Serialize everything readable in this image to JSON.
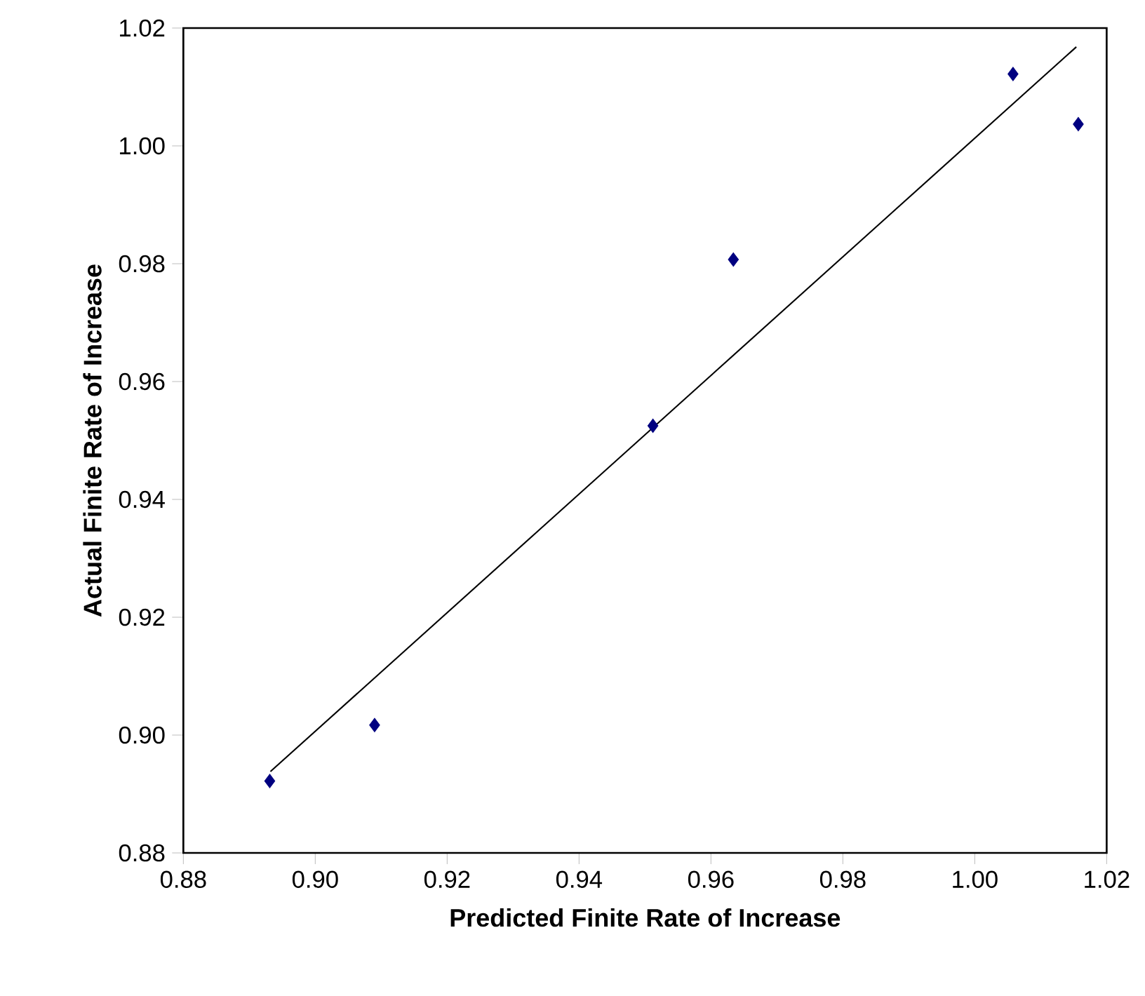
{
  "chart_data": {
    "type": "scatter",
    "xlabel": "Predicted Finite Rate of Increase",
    "ylabel": "Actual Finite Rate of Increase",
    "xlim": [
      0.88,
      1.02
    ],
    "ylim": [
      0.88,
      1.02
    ],
    "xticks": [
      {
        "value": 0.88,
        "label": "0.88"
      },
      {
        "value": 0.9,
        "label": "0.90"
      },
      {
        "value": 0.92,
        "label": "0.92"
      },
      {
        "value": 0.94,
        "label": "0.94"
      },
      {
        "value": 0.96,
        "label": "0.96"
      },
      {
        "value": 0.98,
        "label": "0.98"
      },
      {
        "value": 1.0,
        "label": "1.00"
      },
      {
        "value": 1.02,
        "label": "1.02"
      }
    ],
    "yticks": [
      {
        "value": 0.88,
        "label": "0.88"
      },
      {
        "value": 0.9,
        "label": "0.90"
      },
      {
        "value": 0.92,
        "label": "0.92"
      },
      {
        "value": 0.94,
        "label": "0.94"
      },
      {
        "value": 0.96,
        "label": "0.96"
      },
      {
        "value": 0.98,
        "label": "0.98"
      },
      {
        "value": 1.0,
        "label": "1.00"
      },
      {
        "value": 1.02,
        "label": "1.02"
      }
    ],
    "grid": false,
    "series": [
      {
        "color": "#000080",
        "marker": "diamond",
        "x": [
          0.8931,
          0.909,
          0.9512,
          0.9634,
          1.0058,
          1.0157
        ],
        "values": [
          0.8922,
          0.9017,
          0.9525,
          0.9807,
          1.0122,
          1.0037
        ]
      },
      {
        "type": "line",
        "color": "#000000",
        "marker": "none",
        "line_style": "solid",
        "x": [
          0.8932,
          1.0154
        ],
        "values": [
          0.8938,
          1.0168
        ]
      }
    ]
  }
}
